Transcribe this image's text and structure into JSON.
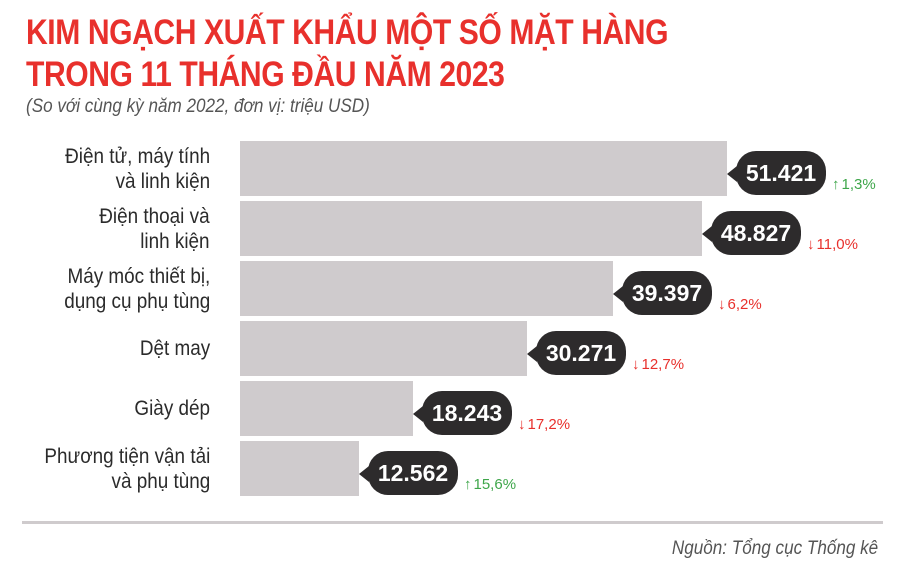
{
  "header": {
    "title_line1": "KIM NGẠCH XUẤT KHẨU MỘT SỐ MẶT HÀNG",
    "title_line2": "TRONG 11 THÁNG ĐẦU NĂM 2023",
    "subtitle": "(So với cùng kỳ năm 2022, đơn vị: triệu USD)"
  },
  "colors": {
    "title": "#e8302c",
    "bar": "#cfcbcd",
    "bubble": "#2d2b2c",
    "up": "#3ea64a",
    "down": "#e8302c"
  },
  "rows": [
    {
      "label": "Điện tử, máy tính\nvà linh kiện",
      "value": "51.421",
      "change": "1,3%",
      "direction": "up",
      "arrow": "↑"
    },
    {
      "label": "Điện thoại và\nlinh kiện",
      "value": "48.827",
      "change": "11,0%",
      "direction": "down",
      "arrow": "↓"
    },
    {
      "label": "Máy móc thiết bị,\ndụng cụ phụ tùng",
      "value": "39.397",
      "change": "6,2%",
      "direction": "down",
      "arrow": "↓"
    },
    {
      "label": "Dệt may",
      "value": "30.271",
      "change": "12,7%",
      "direction": "down",
      "arrow": "↓"
    },
    {
      "label": "Giày dép",
      "value": "18.243",
      "change": "17,2%",
      "direction": "down",
      "arrow": "↓"
    },
    {
      "label": "Phương tiện vận tải\nvà phụ tùng",
      "value": "12.562",
      "change": "15,6%",
      "direction": "up",
      "arrow": "↑"
    }
  ],
  "footer": {
    "source": "Nguồn: Tổng cục Thống kê"
  },
  "chart_data": {
    "type": "bar",
    "orientation": "horizontal",
    "title": "KIM NGẠCH XUẤT KHẨU MỘT SỐ MẶT HÀNG TRONG 11 THÁNG ĐẦU NĂM 2023",
    "subtitle": "(So với cùng kỳ năm 2022, đơn vị: triệu USD)",
    "categories": [
      "Điện tử, máy tính và linh kiện",
      "Điện thoại và linh kiện",
      "Máy móc thiết bị, dụng cụ phụ tùng",
      "Dệt may",
      "Giày dép",
      "Phương tiện vận tải và phụ tùng"
    ],
    "values": [
      51421,
      48827,
      39397,
      30271,
      18243,
      12562
    ],
    "change_pct": [
      1.3,
      -11.0,
      -6.2,
      -12.7,
      -17.2,
      15.6
    ],
    "xlabel": "",
    "ylabel": "",
    "unit": "triệu USD",
    "grid": false,
    "source": "Nguồn: Tổng cục Thống kê"
  }
}
